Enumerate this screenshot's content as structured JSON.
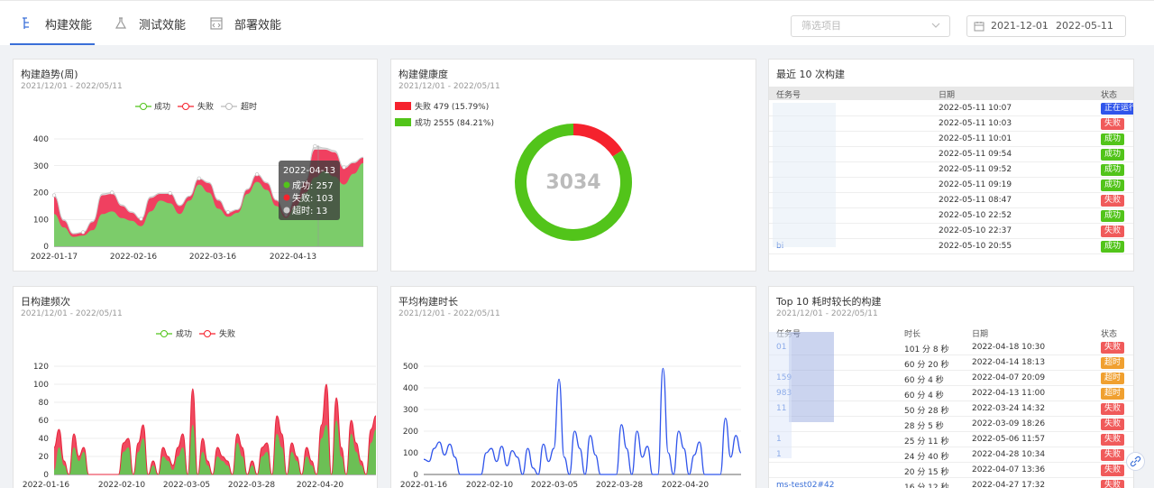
{
  "tabs": [
    {
      "label": "构建效能",
      "active": true
    },
    {
      "label": "测试效能",
      "active": false
    },
    {
      "label": "部署效能",
      "active": false
    }
  ],
  "filter": {
    "placeholder": "筛选项目"
  },
  "date_range": {
    "start": "2021-12-01",
    "separator": "-",
    "end": "2022-05-11"
  },
  "colors": {
    "success": "#52c41a",
    "fail": "#f5222d",
    "timeout": "#bbbbbb",
    "line": "#2f54eb",
    "accent": "#3a6fd8"
  },
  "trend": {
    "title": "构建趋势(周)",
    "subtitle": "2021/12/01 - 2022/05/11",
    "legend": [
      "成功",
      "失败",
      "超时"
    ],
    "tooltip": {
      "date": "2022-04-13",
      "lines": [
        "成功: 257",
        "失败: 103",
        "超时: 13"
      ]
    },
    "chart_data": {
      "type": "area",
      "x_ticks": [
        "2022-01-17",
        "2022-02-16",
        "2022-03-16",
        "2022-04-13"
      ],
      "y_ticks": [
        0,
        100,
        200,
        300,
        400
      ],
      "ylim": [
        0,
        400
      ],
      "series": [
        {
          "name": "成功",
          "values": [
            120,
            70,
            35,
            40,
            60,
            120,
            130,
            105,
            95,
            75,
            130,
            170,
            160,
            120,
            170,
            230,
            200,
            140,
            110,
            125,
            195,
            240,
            210,
            150,
            105,
            150,
            200,
            257,
            280,
            260,
            230,
            270,
            310
          ]
        },
        {
          "name": "失败",
          "values": [
            65,
            25,
            10,
            10,
            30,
            70,
            65,
            45,
            30,
            25,
            50,
            25,
            35,
            30,
            15,
            20,
            35,
            30,
            15,
            10,
            15,
            25,
            25,
            20,
            10,
            25,
            40,
            103,
            80,
            90,
            60,
            40,
            20
          ]
        },
        {
          "name": "超时",
          "values": [
            5,
            3,
            2,
            2,
            3,
            5,
            5,
            4,
            3,
            2,
            4,
            3,
            3,
            2,
            2,
            3,
            3,
            3,
            2,
            2,
            3,
            3,
            3,
            2,
            2,
            3,
            4,
            13,
            6,
            6,
            4,
            3,
            2
          ]
        }
      ]
    }
  },
  "health": {
    "title": "构建健康度",
    "subtitle": "2021/12/01 - 2022/05/11",
    "legend": [
      "失败 479 (15.79%)",
      "成功 2555 (84.21%)"
    ],
    "total": "3034",
    "chart_data": {
      "type": "pie",
      "categories": [
        "失败",
        "成功"
      ],
      "values": [
        479,
        2555
      ]
    }
  },
  "recent": {
    "title": "最近 10 次构建",
    "headers": [
      "任务号",
      "日期",
      "状态"
    ],
    "rows": [
      {
        "id": "",
        "date": "2022-05-11 10:07",
        "status": "正在运行",
        "kind": "run"
      },
      {
        "id": "",
        "date": "2022-05-11 10:03",
        "status": "失败",
        "kind": "fail"
      },
      {
        "id": "",
        "date": "2022-05-11 10:01",
        "status": "成功",
        "kind": "ok"
      },
      {
        "id": "",
        "date": "2022-05-11 09:54",
        "status": "成功",
        "kind": "ok"
      },
      {
        "id": "",
        "date": "2022-05-11 09:52",
        "status": "成功",
        "kind": "ok"
      },
      {
        "id": "",
        "date": "2022-05-11 09:19",
        "status": "成功",
        "kind": "ok"
      },
      {
        "id": "",
        "date": "2022-05-11 08:47",
        "status": "失败",
        "kind": "fail"
      },
      {
        "id": "",
        "date": "2022-05-10 22:52",
        "status": "成功",
        "kind": "ok"
      },
      {
        "id": "",
        "date": "2022-05-10 22:37",
        "status": "失败",
        "kind": "fail"
      },
      {
        "id": "bi",
        "date": "2022-05-10 20:55",
        "status": "成功",
        "kind": "ok"
      }
    ]
  },
  "daily": {
    "title": "日构建频次",
    "subtitle": "2021/12/01 - 2022/05/11",
    "legend": [
      "成功",
      "失败"
    ],
    "chart_data": {
      "type": "area",
      "x_ticks": [
        "2022-01-16",
        "2022-02-10",
        "2022-03-05",
        "2022-03-28",
        "2022-04-20"
      ],
      "y_ticks": [
        0,
        20,
        40,
        60,
        80,
        100,
        120
      ],
      "ylim": [
        0,
        120
      ],
      "series": [
        {
          "name": "成功",
          "values": [
            5,
            30,
            10,
            0,
            30,
            15,
            25,
            0,
            0,
            0,
            0,
            0,
            0,
            0,
            25,
            30,
            0,
            25,
            40,
            0,
            10,
            0,
            20,
            15,
            5,
            20,
            30,
            0,
            55,
            0,
            25,
            10,
            0,
            20,
            15,
            10,
            0,
            35,
            20,
            0,
            10,
            0,
            20,
            25,
            0,
            45,
            30,
            0,
            25,
            15,
            0,
            20,
            10,
            0,
            40,
            55,
            0,
            60,
            20,
            0,
            45,
            25,
            10,
            0,
            35,
            50
          ]
        },
        {
          "name": "失败",
          "values": [
            30,
            50,
            15,
            0,
            45,
            20,
            30,
            0,
            0,
            0,
            0,
            0,
            0,
            0,
            35,
            40,
            0,
            35,
            55,
            0,
            15,
            0,
            30,
            20,
            10,
            30,
            45,
            0,
            95,
            0,
            40,
            15,
            0,
            30,
            20,
            15,
            0,
            45,
            30,
            0,
            15,
            0,
            30,
            35,
            0,
            65,
            45,
            0,
            35,
            20,
            0,
            30,
            15,
            0,
            55,
            100,
            0,
            85,
            30,
            0,
            60,
            35,
            15,
            0,
            50,
            65
          ]
        }
      ]
    }
  },
  "avg": {
    "title": "平均构建时长",
    "subtitle": "2021/12/01 - 2022/05/11",
    "chart_data": {
      "type": "line",
      "x_ticks": [
        "2022-01-16",
        "2022-02-10",
        "2022-03-05",
        "2022-03-28",
        "2022-04-20"
      ],
      "y_ticks": [
        0,
        100,
        200,
        300,
        400,
        500
      ],
      "ylim": [
        0,
        500
      ],
      "series": [
        {
          "name": "",
          "values": [
            70,
            60,
            120,
            150,
            90,
            140,
            80,
            0,
            0,
            0,
            0,
            0,
            100,
            120,
            60,
            130,
            40,
            110,
            80,
            0,
            120,
            30,
            0,
            140,
            60,
            120,
            440,
            80,
            0,
            200,
            120,
            0,
            180,
            90,
            0,
            0,
            0,
            0,
            230,
            120,
            0,
            200,
            80,
            130,
            0,
            0,
            490,
            100,
            0,
            200,
            120,
            0,
            90,
            150,
            0,
            0,
            0,
            0,
            260,
            80,
            180,
            100
          ]
        }
      ]
    }
  },
  "top10": {
    "title": "Top 10 耗时较长的构建",
    "subtitle": "2021/12/01 - 2022/05/11",
    "headers": [
      "任务号",
      "时长",
      "日期",
      "状态"
    ],
    "rows": [
      {
        "id": "01",
        "dur": "101 分 8 秒",
        "date": "2022-04-18 10:30",
        "status": "失败",
        "kind": "fail"
      },
      {
        "id": "",
        "dur": "60 分 20 秒",
        "date": "2022-04-14 18:13",
        "status": "超时",
        "kind": "timeout"
      },
      {
        "id": "159",
        "dur": "60 分 4 秒",
        "date": "2022-04-07 20:09",
        "status": "超时",
        "kind": "timeout"
      },
      {
        "id": "983",
        "dur": "60 分 4 秒",
        "date": "2022-04-13 11:00",
        "status": "超时",
        "kind": "timeout"
      },
      {
        "id": "11",
        "dur": "50 分 28 秒",
        "date": "2022-03-24 14:32",
        "status": "失败",
        "kind": "fail"
      },
      {
        "id": "",
        "dur": "28 分 5 秒",
        "date": "2022-03-09 18:26",
        "status": "失败",
        "kind": "fail"
      },
      {
        "id": "1",
        "dur": "25 分 11 秒",
        "date": "2022-05-06 11:57",
        "status": "失败",
        "kind": "fail"
      },
      {
        "id": "1",
        "dur": "24 分 40 秒",
        "date": "2022-04-28 10:34",
        "status": "失败",
        "kind": "fail"
      },
      {
        "id": "",
        "dur": "20 分 15 秒",
        "date": "2022-04-07 13:36",
        "status": "失败",
        "kind": "fail"
      },
      {
        "id": "ms-test02#42",
        "dur": "16 分 12 秒",
        "date": "2022-04-27 17:32",
        "status": "失败",
        "kind": "fail"
      }
    ]
  }
}
